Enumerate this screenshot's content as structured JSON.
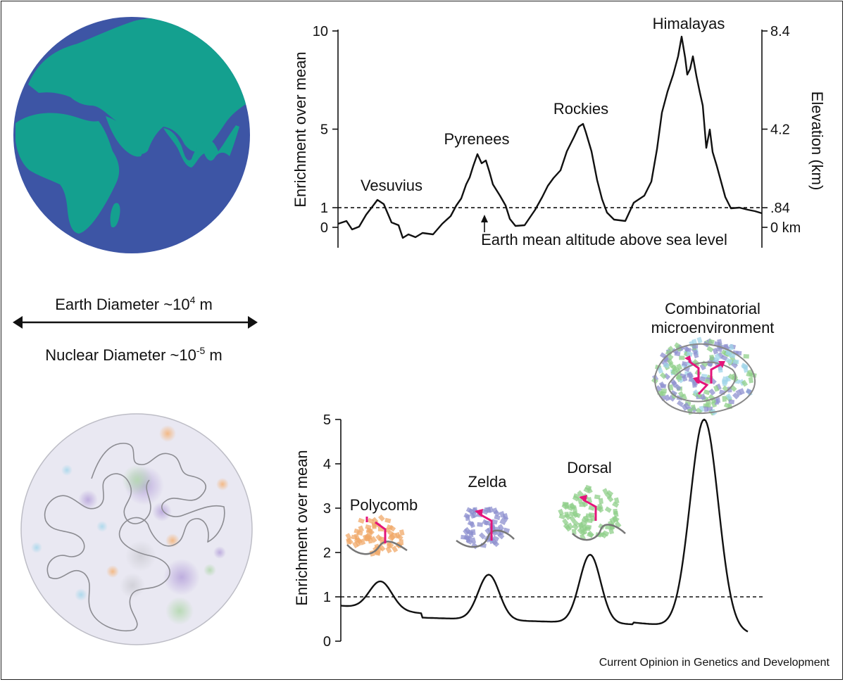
{
  "top_chart": {
    "y_label_left": "Enrichment over mean",
    "y_label_right": "Elevation (km)",
    "left_ticks": [
      "10",
      "5",
      "1",
      "0"
    ],
    "right_ticks": [
      "8.4",
      "4.2",
      ".84",
      "0 km"
    ],
    "peaks": [
      {
        "name": "Vesuvius",
        "enrichment": 1.4
      },
      {
        "name": "Pyrenees",
        "enrichment": 3.7
      },
      {
        "name": "Rockies",
        "enrichment": 5.2
      },
      {
        "name": "Himalayas",
        "enrichment": 9.7
      }
    ],
    "mean_line_label": "Earth mean altitude above sea level",
    "mean_value": 1
  },
  "scale": {
    "earth_text": "Earth Diameter ~10",
    "earth_exp": "4",
    "nuclear_text": "Nuclear Diameter ~10",
    "nuclear_exp": "-5",
    "unit": " m"
  },
  "bottom_chart": {
    "y_label": "Enrichment over mean",
    "ticks": [
      "5",
      "4",
      "3",
      "2",
      "1",
      "0"
    ],
    "peaks": [
      {
        "name": "Polycomb",
        "enrichment": 1.35
      },
      {
        "name": "Zelda",
        "enrichment": 1.5
      },
      {
        "name": "Dorsal",
        "enrichment": 1.95
      },
      {
        "name": "Combinatorial",
        "name2": "microenvironment",
        "enrichment": 5.0
      }
    ],
    "mean_value": 1
  },
  "colors": {
    "ocean": "#3d55a5",
    "land": "#14a08f",
    "nucleus": "#e9e8f2",
    "arrow": "#e4147a",
    "polycomb": "#f0a868",
    "zelda": "#8e90cf",
    "dorsal": "#8fcf8a"
  },
  "credit": "Current Opinion in Genetics and Development"
}
